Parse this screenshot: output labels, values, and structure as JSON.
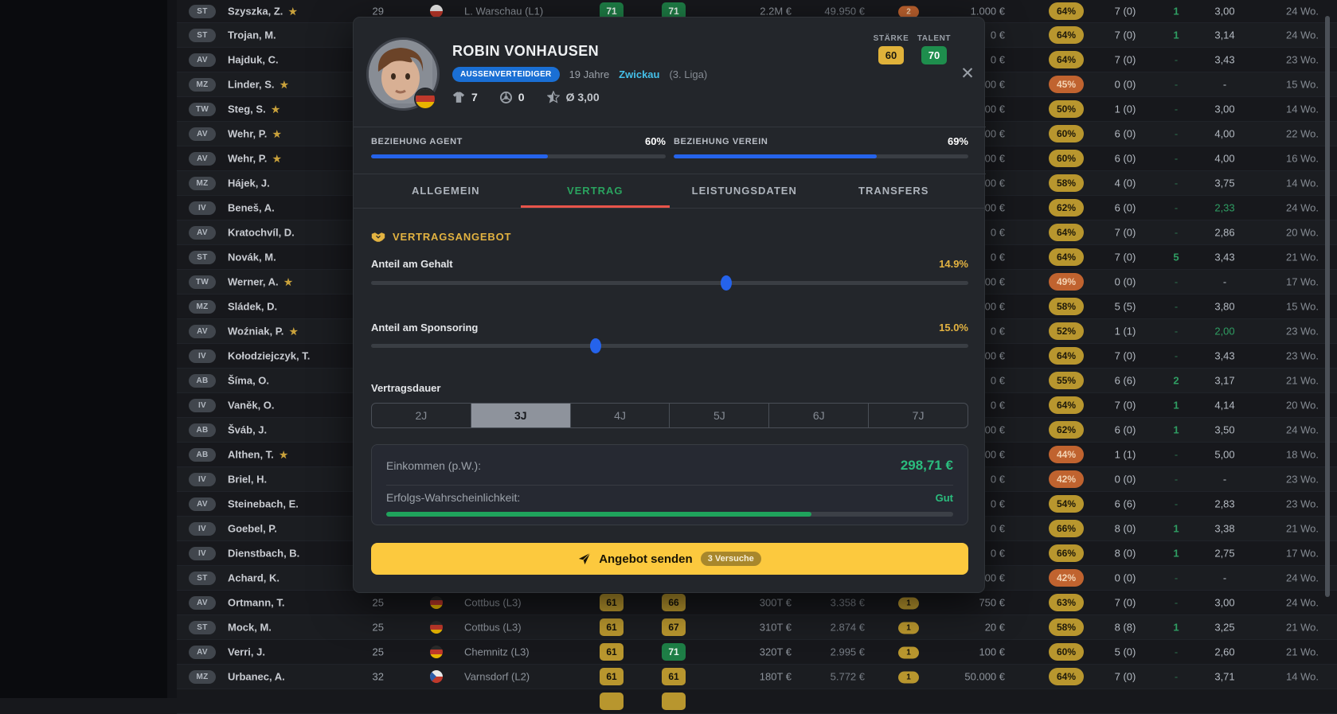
{
  "colors": {
    "accent_yellow": "#e3b341",
    "badge_yellow": "#b8962e",
    "badge_orange": "#c0632f",
    "badge_green": "#1e7e46",
    "blue": "#2563eb",
    "green_text": "#2bbd7e",
    "tab_active": "#2aa35f",
    "tab_underline": "#e8544a",
    "button_yellow": "#fcc93e",
    "link_cyan": "#44bfe8"
  },
  "icons": {
    "close": "✕",
    "name_star": "★",
    "shirt": "shirt-icon",
    "ball": "soccer-ball-icon",
    "rating_star": "half-star-icon",
    "section": "handshake-icon",
    "send": "paper-plane-icon"
  },
  "modal": {
    "player": {
      "name": "ROBIN VONHAUSEN",
      "role_badge": "AUSSENVERTEIDIGER",
      "age": "19 Jahre",
      "club": "Zwickau",
      "league": "(3. Liga)",
      "apps": "7",
      "goals": "0",
      "avg_rating": "Ø 3,00",
      "strength_label": "STÄRKE",
      "talent_label": "TALENT",
      "strength": "60",
      "talent": "70"
    },
    "relations": {
      "agent_label": "BEZIEHUNG AGENT",
      "agent_value": "60%",
      "agent_pct": 60,
      "club_label": "BEZIEHUNG VEREIN",
      "club_value": "69%",
      "club_pct": 69
    },
    "tabs": [
      {
        "label": "ALLGEMEIN",
        "active": false
      },
      {
        "label": "VERTRAG",
        "active": true
      },
      {
        "label": "LEISTUNGSDATEN",
        "active": false
      },
      {
        "label": "TRANSFERS",
        "active": false
      }
    ],
    "section_title": "VERTRAGSANGEBOT",
    "salary": {
      "label": "Anteil am Gehalt",
      "value": "14.9%",
      "handle_pct": 59.4
    },
    "sponsoring": {
      "label": "Anteil am Sponsoring",
      "value": "15.0%",
      "handle_pct": 37.6
    },
    "duration": {
      "label": "Vertragsdauer",
      "options": [
        "2J",
        "3J",
        "4J",
        "5J",
        "6J",
        "7J"
      ],
      "selected": "3J"
    },
    "summary": {
      "income_label": "Einkommen (p.W.):",
      "income_value": "298,71 €",
      "prob_label": "Erfolgs-Wahrscheinlichkeit:",
      "prob_value": "Gut",
      "prob_pct": 75
    },
    "submit": {
      "label": "Angebot senden",
      "badge": "3 Versuche"
    }
  },
  "table": {
    "rows": [
      {
        "pos": "ST",
        "name": "Szyszka, Z.",
        "star": true,
        "age": "29",
        "flag": "pl",
        "club": "L. Warschau (L1)",
        "r1": "71",
        "r1c": "green",
        "r2": "71",
        "r2c": "green",
        "mv": "2.2M €",
        "sal": "49.950 €",
        "cb": "2",
        "cbc": "orange",
        "amt": "1.000 €",
        "pct": "64%",
        "pctc": "yellow",
        "apps": "7 (0)",
        "gnum": "1",
        "rat": "3,00",
        "wks": "24 Wo."
      },
      {
        "pos": "ST",
        "name": "Trojan, M.",
        "star": false,
        "amt": "0 €",
        "pct": "64%",
        "pctc": "yellow",
        "apps": "7 (0)",
        "gnum": "1",
        "rat": "3,14",
        "wks": "24 Wo."
      },
      {
        "pos": "AV",
        "name": "Hajduk, C.",
        "star": false,
        "amt": "0 €",
        "pct": "64%",
        "pctc": "yellow",
        "apps": "7 (0)",
        "gnum": "-",
        "rat": "3,43",
        "wks": "23 Wo."
      },
      {
        "pos": "MZ",
        "name": "Linder, S.",
        "star": true,
        "amt": "00 €",
        "pct": "45%",
        "pctc": "orange",
        "apps": "0 (0)",
        "gnum": "-",
        "rat": "-",
        "wks": "15 Wo."
      },
      {
        "pos": "TW",
        "name": "Steg, S.",
        "star": true,
        "amt": "000 €",
        "pct": "50%",
        "pctc": "yellow",
        "apps": "1 (0)",
        "gnum": "-",
        "rat": "3,00",
        "wks": "14 Wo."
      },
      {
        "pos": "AV",
        "name": "Wehr, P.",
        "star": true,
        "amt": "000 €",
        "pct": "60%",
        "pctc": "yellow",
        "apps": "6 (0)",
        "gnum": "-",
        "rat": "4,00",
        "wks": "22 Wo."
      },
      {
        "pos": "AV",
        "name": "Wehr, P.",
        "star": true,
        "amt": "000 €",
        "pct": "60%",
        "pctc": "yellow",
        "apps": "6 (0)",
        "gnum": "-",
        "rat": "4,00",
        "wks": "16 Wo."
      },
      {
        "pos": "MZ",
        "name": "Hájek, J.",
        "star": false,
        "amt": "000 €",
        "pct": "58%",
        "pctc": "yellow",
        "apps": "4 (0)",
        "gnum": "-",
        "rat": "3,75",
        "wks": "14 Wo."
      },
      {
        "pos": "IV",
        "name": "Beneš, A.",
        "star": false,
        "amt": "000 €",
        "pct": "62%",
        "pctc": "yellow",
        "apps": "6 (0)",
        "gnum": "-",
        "rat": "2,33",
        "ratc": "green",
        "wks": "24 Wo."
      },
      {
        "pos": "AV",
        "name": "Kratochvíl, D.",
        "star": false,
        "amt": "0 €",
        "pct": "64%",
        "pctc": "yellow",
        "apps": "7 (0)",
        "gnum": "-",
        "rat": "2,86",
        "wks": "20 Wo."
      },
      {
        "pos": "ST",
        "name": "Novák, M.",
        "star": false,
        "amt": "0 €",
        "pct": "64%",
        "pctc": "yellow",
        "apps": "7 (0)",
        "gnum": "5",
        "rat": "3,43",
        "wks": "21 Wo."
      },
      {
        "pos": "TW",
        "name": "Werner, A.",
        "star": true,
        "amt": "00 €",
        "pct": "49%",
        "pctc": "orange",
        "apps": "0 (0)",
        "gnum": "-",
        "rat": "-",
        "wks": "17 Wo."
      },
      {
        "pos": "MZ",
        "name": "Sládek, D.",
        "star": false,
        "amt": "000 €",
        "pct": "58%",
        "pctc": "yellow",
        "apps": "5 (5)",
        "gnum": "-",
        "rat": "3,80",
        "wks": "15 Wo."
      },
      {
        "pos": "AV",
        "name": "Woźniak, P.",
        "star": true,
        "amt": "0 €",
        "pct": "52%",
        "pctc": "yellow",
        "apps": "1 (1)",
        "gnum": "-",
        "rat": "2,00",
        "ratc": "green",
        "wks": "23 Wo."
      },
      {
        "pos": "IV",
        "name": "Kołodziejczyk, T.",
        "star": false,
        "amt": "000 €",
        "pct": "64%",
        "pctc": "yellow",
        "apps": "7 (0)",
        "gnum": "-",
        "rat": "3,43",
        "wks": "23 Wo."
      },
      {
        "pos": "AB",
        "name": "Šíma, O.",
        "star": false,
        "amt": "0 €",
        "pct": "55%",
        "pctc": "yellow",
        "apps": "6 (6)",
        "gnum": "2",
        "rat": "3,17",
        "wks": "21 Wo."
      },
      {
        "pos": "IV",
        "name": "Vaněk, O.",
        "star": false,
        "amt": "0 €",
        "pct": "64%",
        "pctc": "yellow",
        "apps": "7 (0)",
        "gnum": "1",
        "rat": "4,14",
        "wks": "20 Wo."
      },
      {
        "pos": "AB",
        "name": "Šváb, J.",
        "star": false,
        "amt": "000 €",
        "pct": "62%",
        "pctc": "yellow",
        "apps": "6 (0)",
        "gnum": "1",
        "rat": "3,50",
        "wks": "24 Wo."
      },
      {
        "pos": "AB",
        "name": "Althen, T.",
        "star": true,
        "amt": "00 €",
        "pct": "44%",
        "pctc": "orange",
        "apps": "1 (1)",
        "gnum": "-",
        "rat": "5,00",
        "wks": "18 Wo."
      },
      {
        "pos": "IV",
        "name": "Briel, H.",
        "star": false,
        "amt": "0 €",
        "pct": "42%",
        "pctc": "orange",
        "apps": "0 (0)",
        "gnum": "-",
        "rat": "-",
        "wks": "23 Wo."
      },
      {
        "pos": "AV",
        "name": "Steinebach, E.",
        "star": false,
        "amt": "0 €",
        "pct": "54%",
        "pctc": "yellow",
        "apps": "6 (6)",
        "gnum": "-",
        "rat": "2,83",
        "wks": "23 Wo."
      },
      {
        "pos": "IV",
        "name": "Goebel, P.",
        "star": false,
        "amt": "0 €",
        "pct": "66%",
        "pctc": "yellow",
        "apps": "8 (0)",
        "gnum": "1",
        "rat": "3,38",
        "wks": "21 Wo."
      },
      {
        "pos": "IV",
        "name": "Dienstbach, B.",
        "star": false,
        "amt": "0 €",
        "pct": "66%",
        "pctc": "yellow",
        "apps": "8 (0)",
        "gnum": "1",
        "rat": "2,75",
        "wks": "17 Wo."
      },
      {
        "pos": "ST",
        "name": "Achard, K.",
        "star": false,
        "amt": "000 €",
        "pct": "42%",
        "pctc": "orange",
        "apps": "0 (0)",
        "gnum": "-",
        "rat": "-",
        "wks": "24 Wo."
      },
      {
        "pos": "AV",
        "name": "Ortmann, T.",
        "star": false,
        "age": "25",
        "flag": "de",
        "club": "Cottbus (L3)",
        "r1": "61",
        "r1c": "yellow",
        "r2": "66",
        "r2c": "yellow",
        "mv": "300T €",
        "sal": "3.358 €",
        "cb": "1",
        "cbc": "yellow",
        "amt": "750 €",
        "pct": "63%",
        "pctc": "yellow",
        "apps": "7 (0)",
        "gnum": "-",
        "rat": "3,00",
        "wks": "24 Wo."
      },
      {
        "pos": "ST",
        "name": "Mock, M.",
        "star": false,
        "age": "25",
        "flag": "de",
        "club": "Cottbus (L3)",
        "r1": "61",
        "r1c": "yellow",
        "r2": "67",
        "r2c": "yellow",
        "mv": "310T €",
        "sal": "2.874 €",
        "cb": "1",
        "cbc": "yellow",
        "amt": "20 €",
        "pct": "58%",
        "pctc": "yellow",
        "apps": "8 (8)",
        "gnum": "1",
        "rat": "3,25",
        "wks": "21 Wo."
      },
      {
        "pos": "AV",
        "name": "Verri, J.",
        "star": false,
        "age": "25",
        "flag": "de",
        "club": "Chemnitz (L3)",
        "r1": "61",
        "r1c": "yellow",
        "r2": "71",
        "r2c": "green",
        "mv": "320T €",
        "sal": "2.995 €",
        "cb": "1",
        "cbc": "yellow",
        "amt": "100 €",
        "pct": "60%",
        "pctc": "yellow",
        "apps": "5 (0)",
        "gnum": "-",
        "rat": "2,60",
        "wks": "21 Wo."
      },
      {
        "pos": "MZ",
        "name": "Urbanec, A.",
        "star": false,
        "age": "32",
        "flag": "cz",
        "club": "Varnsdorf (L2)",
        "r1": "61",
        "r1c": "yellow",
        "r2": "61",
        "r2c": "yellow",
        "mv": "180T €",
        "sal": "5.772 €",
        "cb": "1",
        "cbc": "yellow",
        "amt": "50.000 €",
        "pct": "64%",
        "pctc": "yellow",
        "apps": "7 (0)",
        "gnum": "-",
        "rat": "3,71",
        "wks": "14 Wo."
      },
      {
        "partial": true,
        "r1": "",
        "r1c": "yellow",
        "r2": "",
        "r2c": "yellow"
      }
    ]
  }
}
